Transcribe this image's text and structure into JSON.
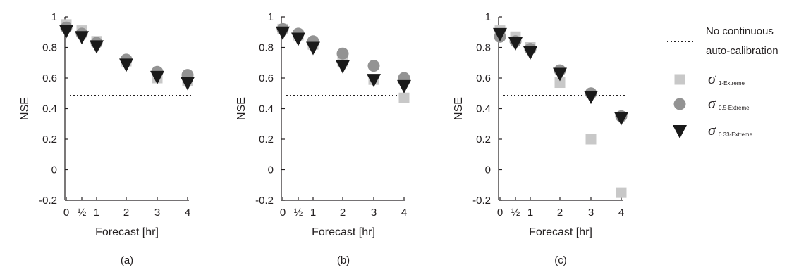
{
  "chart_data": [
    {
      "type": "scatter",
      "caption": "(a)",
      "xlabel": "Forecast [hr]",
      "ylabel": "NSE",
      "ylim": [
        -0.2,
        1
      ],
      "yticks": [
        "1",
        "0.8",
        "0.6",
        "0.4",
        "0.2",
        "0",
        "-0.2"
      ],
      "x": [
        0,
        0.5,
        1,
        2,
        3,
        4
      ],
      "xtick_labels": [
        "0",
        "½",
        "1",
        "2",
        "3",
        "4"
      ],
      "baseline": 0.485,
      "series": [
        {
          "marker": "square",
          "values": [
            0.95,
            0.91,
            0.84,
            0.71,
            0.6,
            0.58
          ]
        },
        {
          "marker": "circle",
          "values": [
            0.93,
            0.89,
            0.83,
            0.72,
            0.64,
            0.62
          ]
        },
        {
          "marker": "triangle",
          "values": [
            0.91,
            0.87,
            0.81,
            0.69,
            0.61,
            0.57
          ]
        }
      ]
    },
    {
      "type": "scatter",
      "caption": "(b)",
      "xlabel": "Forecast [hr]",
      "ylabel": "NSE",
      "ylim": [
        -0.2,
        1
      ],
      "yticks": [
        "1",
        "0.8",
        "0.6",
        "0.4",
        "0.2",
        "0",
        "-0.2"
      ],
      "x": [
        0,
        0.5,
        1,
        2,
        3,
        4
      ],
      "xtick_labels": [
        "0",
        "½",
        "1",
        "2",
        "3",
        "4"
      ],
      "baseline": 0.485,
      "series": [
        {
          "marker": "square",
          "values": [
            0.92,
            0.88,
            0.82,
            0.71,
            0.59,
            0.47
          ]
        },
        {
          "marker": "circle",
          "values": [
            0.92,
            0.89,
            0.84,
            0.76,
            0.68,
            0.6
          ]
        },
        {
          "marker": "triangle",
          "values": [
            0.9,
            0.86,
            0.8,
            0.68,
            0.59,
            0.55
          ]
        }
      ]
    },
    {
      "type": "scatter",
      "caption": "(c)",
      "xlabel": "Forecast [hr]",
      "ylabel": "NSE",
      "ylim": [
        -0.2,
        1
      ],
      "yticks": [
        "1",
        "0.8",
        "0.6",
        "0.4",
        "0.2",
        "0",
        "-0.2"
      ],
      "x": [
        0,
        0.5,
        1,
        2,
        3,
        4
      ],
      "xtick_labels": [
        "0",
        "½",
        "1",
        "2",
        "3",
        "4"
      ],
      "baseline": 0.485,
      "series": [
        {
          "marker": "square",
          "values": [
            0.91,
            0.87,
            0.8,
            0.57,
            0.2,
            -0.15
          ]
        },
        {
          "marker": "circle",
          "values": [
            0.87,
            0.84,
            0.79,
            0.65,
            0.5,
            0.35
          ]
        },
        {
          "marker": "triangle",
          "values": [
            0.89,
            0.83,
            0.77,
            0.63,
            0.48,
            0.34
          ]
        }
      ]
    }
  ],
  "legend": {
    "baseline_label_line1": "No continuous",
    "baseline_label_line2": "auto-calibration",
    "items": [
      {
        "marker": "square",
        "symbol": "σ",
        "subscript": "1-Extreme"
      },
      {
        "marker": "circle",
        "symbol": "σ",
        "subscript": "0.5-Extreme"
      },
      {
        "marker": "triangle",
        "symbol": "σ",
        "subscript": "0.33-Extreme"
      }
    ]
  },
  "colors": {
    "square": "#c8c8c8",
    "circle": "#939393",
    "triangle": "#1a1a1a",
    "axis": "#231f20"
  }
}
